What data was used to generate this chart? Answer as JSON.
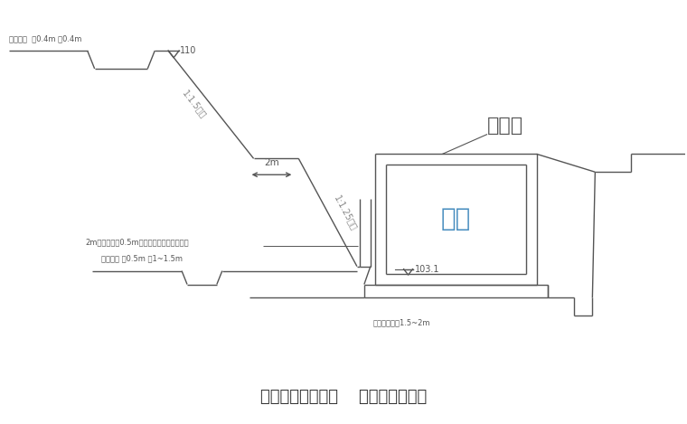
{
  "bg_color": "#ffffff",
  "line_color": "#555555",
  "line_width": 1.0,
  "title_text": "需要时增加松木桩    边坡加固示意图",
  "title_fontsize": 13,
  "label_paishui_top": "排水明沟  深0.4m 宽0.4m",
  "label_jikeng": "基坑",
  "label_yinshuiqu": "引水渠",
  "label_103": "103.1",
  "label_slope1": "1:1.5坡坡",
  "label_slope2": "1:1.25坡坡",
  "label_2m": "2m",
  "label_mugui": "2m长木桩间距0.5m插入地坑上用竹管固围栏",
  "label_paishui_bot": "排水明沟 深0.5m 宽1~1.5m",
  "label_jiashou": "脚手架设宽度1.5~2m",
  "fig_width": 7.6,
  "fig_height": 4.69
}
